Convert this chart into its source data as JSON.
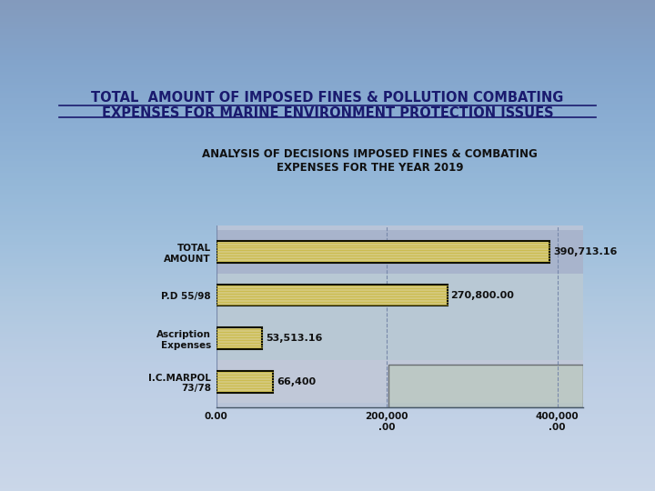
{
  "main_title_line1": "TOTAL  AMOUNT OF IMPOSED FINES & POLLUTION COMBATING",
  "main_title_line2": "EXPENSES FOR MARINE ENVIRONMENT PROTECTION ISSUES",
  "chart_title": "ANALYSIS OF DECISIONS IMPOSED FINES & COMBATING\nEXPENSES FOR THE YEAR 2019",
  "categories": [
    "I.C.MARPOL\n73/78",
    "Ascription\nExpenses",
    "P.D 55/98",
    "TOTAL\nAMOUNT"
  ],
  "values": [
    66400,
    53513.16,
    270800.0,
    390713.16
  ],
  "bar_labels": [
    "66,400",
    "53,513.16",
    "270,800.00",
    "390,713.16"
  ],
  "xlim_max": 430000,
  "xticks": [
    0,
    200000,
    400000
  ],
  "xtick_labels": [
    "0.00",
    "200,000\n.00",
    "400,000\n.00"
  ],
  "bar_face": "#d4c87a",
  "bar_edge": "#111100",
  "stripe_color": "#c8b840",
  "bg_color_top": "#b0bedd",
  "bg_color_bottom": "#c8d4e8",
  "chart_panel_bg": "#c0ccdc",
  "chart_panel_border": "#445566",
  "row_bg_top": "#9aa8c4",
  "row_bg_bottom": "#b8c8d8",
  "title_color": "#1a1a6e",
  "axis_label_color": "#111111",
  "chart_title_color": "#111111",
  "main_title_fontsize": 10.5,
  "chart_title_fontsize": 8.5,
  "tick_label_fontsize": 7.5,
  "bar_label_fontsize": 8,
  "ytick_fontsize": 7.5
}
